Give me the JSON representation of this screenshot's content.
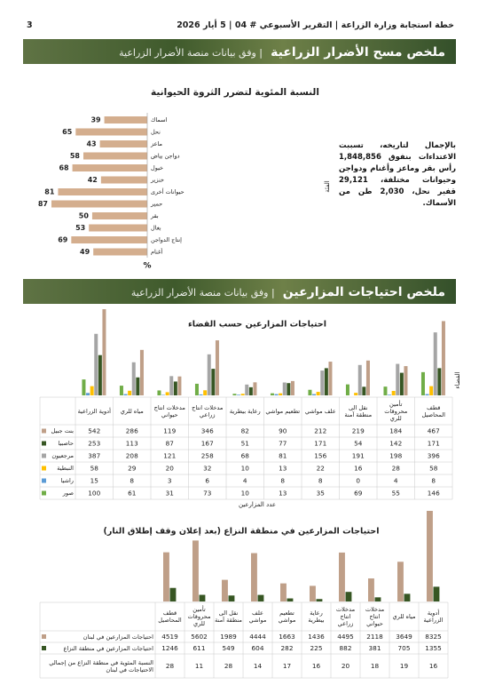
{
  "header": {
    "title": "خطة استجابة وزارة الزراعة | التقرير الأسبوعي # 04 | 5 أيار 2026",
    "page": "3"
  },
  "sections": [
    {
      "title": "ملخص مسح الأضرار  الزراعية",
      "subtitle": "| وفق بيانات منصة الأضرار الزراعية"
    },
    {
      "title": "ملخص احتياجات المزارعين",
      "subtitle": "| وفق بيانات منصة الأضرار الزراعية"
    }
  ],
  "summary": "بالإجمال لتاريخه، تسببت الاعتداءات بنفوق 1,848,856 رأس بقر وماعز وأغنام ودواجن وحيوانات مختلفة، 29,121 قفير نحل، 2,030 طن من الأسماك.",
  "chart_data": [
    {
      "type": "bar",
      "orientation": "horizontal",
      "title": "النسبة المئوية لتضرر الثروة الحيوانية",
      "categories": [
        "اسماك",
        "نحل",
        "ماعز",
        "دواجن بياض",
        "خيول",
        "خنزير",
        "حيوانات أخرى",
        "حمير",
        "بقر",
        "بغال",
        "إنتاج الدواجن",
        "أغنام"
      ],
      "values": [
        39,
        65,
        43,
        58,
        68,
        42,
        81,
        87,
        50,
        53,
        69,
        49
      ],
      "color": "#d4ae8e",
      "x_label": "%",
      "y_label": "الفئة"
    },
    {
      "type": "bar",
      "title": "احتياجات المزارعين حسب القضاء",
      "x_label": "عدد المزارعين",
      "y_label": "القضاء",
      "categories": [
        "أدوية الزراعية",
        "مياه للري",
        "مدخلات انتاج حيواني",
        "مدخلات انتاج زراعي",
        "رعاية بيطرية",
        "تطعيم مواشي",
        "علف مواشي",
        "نقل الى منطقة آمنة",
        "تأمين محروقات للري",
        "قطف المحاصيل"
      ],
      "series": [
        {
          "name": "بنت جبيل",
          "color": "#bf9f88",
          "values": [
            542,
            286,
            119,
            346,
            82,
            90,
            212,
            219,
            184,
            467
          ]
        },
        {
          "name": "حاصبيا",
          "color": "#375623",
          "values": [
            253,
            113,
            87,
            167,
            51,
            77,
            171,
            54,
            142,
            171
          ]
        },
        {
          "name": "مرجعيون",
          "color": "#a5a5a5",
          "values": [
            387,
            208,
            121,
            258,
            68,
            81,
            156,
            191,
            198,
            396
          ]
        },
        {
          "name": "النبطية",
          "color": "#ffc000",
          "values": [
            58,
            29,
            20,
            32,
            10,
            13,
            22,
            16,
            28,
            58
          ]
        },
        {
          "name": "راشيا",
          "color": "#5b9bd5",
          "values": [
            15,
            8,
            3,
            6,
            4,
            8,
            8,
            0,
            4,
            8
          ]
        },
        {
          "name": "صور",
          "color": "#70ad47",
          "values": [
            100,
            61,
            31,
            73,
            10,
            13,
            35,
            69,
            55,
            146
          ]
        }
      ]
    },
    {
      "type": "bar",
      "title": "احتياجات المزارعين في منطقة النزاع (بعد إعلان وقف إطلاق النار)",
      "categories": [
        "قطف المحاصيل",
        "تأمين محروقات للري",
        "نقل الى منطقة آمنة",
        "علف مواشي",
        "تطعيم مواشي",
        "رعاية بيطرية",
        "مدخلات انتاج زراعي",
        "مدخلات انتاج حيواني",
        "مياه للري",
        "أدوية الزراعية"
      ],
      "series": [
        {
          "name": "احتياجات المزارعين في لبنان",
          "color": "#bf9f88",
          "values": [
            4519,
            5602,
            1989,
            4444,
            1663,
            1436,
            4495,
            2118,
            3649,
            8325
          ]
        },
        {
          "name": "احتياجات المزارعين في منطقة النزاع",
          "color": "#375623",
          "values": [
            1246,
            611,
            549,
            604,
            282,
            225,
            882,
            381,
            705,
            1355
          ]
        }
      ],
      "table_rows": [
        {
          "name": "النسبة المئوية في منطقة النزاع من إجمالي الاحتياجات في لبنان",
          "values": [
            28,
            11,
            28,
            14,
            17,
            16,
            20,
            18,
            19,
            16
          ]
        }
      ]
    }
  ]
}
